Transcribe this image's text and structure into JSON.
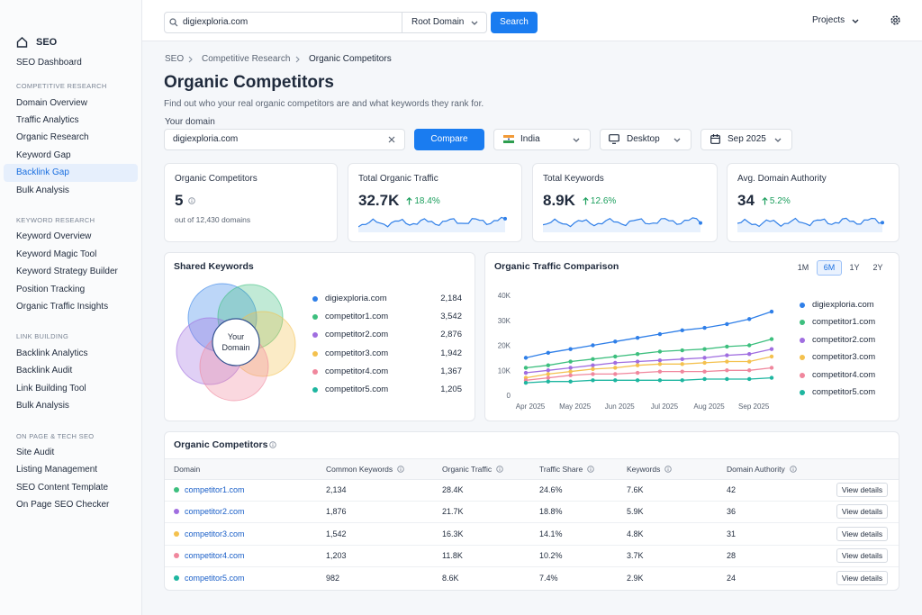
{
  "sidebar": {
    "title": "SEO",
    "dashboard": "SEO Dashboard",
    "active_section": 0,
    "active_item": 4,
    "sections": [
      {
        "heading": "COMPETITIVE RESEARCH",
        "items": [
          "Domain Overview",
          "Traffic Analytics",
          "Organic Research",
          "Keyword Gap",
          "Backlink Gap",
          "Bulk Analysis"
        ]
      },
      {
        "heading": "KEYWORD RESEARCH",
        "items": [
          "Keyword Overview",
          "Keyword Magic Tool",
          "Keyword Strategy Builder",
          "Position Tracking",
          "Organic Traffic Insights"
        ]
      },
      {
        "heading": "LINK BUILDING",
        "items": [
          "Backlink Analytics",
          "Backlink Audit",
          "Link Building Tool",
          "Bulk Analysis"
        ]
      },
      {
        "heading": "ON PAGE & TECH SEO",
        "items": [
          "Site Audit",
          "Listing Management",
          "SEO Content Template",
          "On Page SEO Checker"
        ]
      }
    ]
  },
  "topbar": {
    "search": "digiexploria.com",
    "scope": "Root Domain",
    "search_button": "Search",
    "projects": "Projects"
  },
  "breadcrumb": [
    "SEO",
    "Competitive Research",
    "Organic Competitors"
  ],
  "title": "Organic Competitors",
  "description": "Find out who your real organic competitors are and what keywords they rank for.",
  "form": {
    "label": "Your domain",
    "domain": "digiexploria.com",
    "compare": "Compare",
    "country": "India",
    "device": "Desktop",
    "date": "Sep 2025"
  },
  "kpis": [
    {
      "label": "Organic Competitors",
      "value": "5",
      "note": "out of 12,430 domains"
    },
    {
      "label": "Total Organic Traffic",
      "value": "32.7K",
      "change": "18.4%"
    },
    {
      "label": "Total Keywords",
      "value": "8.9K",
      "change": "12.6%"
    },
    {
      "label": "Avg. Domain Authority",
      "value": "34",
      "change": "5.2%"
    }
  ],
  "shared_keywords": {
    "title": "Shared Keywords",
    "center": "Your Domain",
    "items": [
      {
        "name": "digiexploria.com",
        "count": "2,184"
      },
      {
        "name": "competitor1.com",
        "count": "3,542"
      },
      {
        "name": "competitor2.com",
        "count": "2,876"
      },
      {
        "name": "competitor3.com",
        "count": "1,942"
      },
      {
        "name": "competitor4.com",
        "count": "1,367"
      },
      {
        "name": "competitor5.com",
        "count": "1,205"
      }
    ]
  },
  "chart_data": {
    "type": "line",
    "title": "Organic Traffic Comparison",
    "ranges": [
      "1M",
      "6M",
      "1Y",
      "2Y"
    ],
    "active_range": 1,
    "categories": [
      "Apr 2025",
      null,
      "May 2025",
      null,
      "Jun 2025",
      null,
      "Jul 2025",
      null,
      "Aug 2025",
      null,
      "Sep 2025",
      null
    ],
    "ylim": [
      0,
      40000
    ],
    "yticks": [
      0,
      {
        "value": 10000,
        "label": "10K"
      },
      {
        "value": 20000,
        "label": "20K"
      },
      {
        "value": 30000,
        "label": "30K"
      },
      {
        "value": 40000,
        "label": "40K"
      }
    ],
    "grid": false,
    "series": [
      {
        "name": "digiexploria.com",
        "color": "#2f7fe8",
        "values": [
          15000,
          17000,
          18500,
          20000,
          21500,
          23000,
          24500,
          26000,
          27000,
          28500,
          30500,
          33500
        ]
      },
      {
        "name": "competitor1.com",
        "color": "#3dbf7e",
        "values": [
          11000,
          12000,
          13500,
          14500,
          15500,
          16500,
          17500,
          18000,
          18500,
          19500,
          20000,
          22500
        ]
      },
      {
        "name": "competitor2.com",
        "color": "#a06ee0",
        "values": [
          9000,
          10000,
          11000,
          12000,
          13000,
          13500,
          14000,
          14500,
          15000,
          16000,
          16500,
          18500
        ]
      },
      {
        "name": "competitor3.com",
        "color": "#f4c14e",
        "values": [
          7000,
          8500,
          9500,
          10500,
          11000,
          12000,
          12500,
          12500,
          13000,
          13500,
          13500,
          15500
        ]
      },
      {
        "name": "competitor4.com",
        "color": "#f0879d",
        "values": [
          6000,
          7000,
          8000,
          8500,
          8500,
          9000,
          9500,
          9500,
          9500,
          10000,
          10000,
          11000
        ]
      },
      {
        "name": "competitor5.com",
        "color": "#1eb6a0",
        "values": [
          5000,
          5500,
          5500,
          6000,
          6000,
          6000,
          6000,
          6000,
          6500,
          6500,
          6500,
          7000
        ]
      }
    ]
  },
  "table": {
    "title": "Organic Competitors",
    "columns": [
      "Domain",
      "Common Keywords",
      "Organic Traffic",
      "Traffic Share",
      "Keywords",
      "Domain Authority"
    ],
    "rows": [
      [
        "competitor1.com",
        "2,134",
        "28.4K",
        "24.6%",
        "7.6K",
        "42"
      ],
      [
        "competitor2.com",
        "1,876",
        "21.7K",
        "18.8%",
        "5.9K",
        "36"
      ],
      [
        "competitor3.com",
        "1,542",
        "16.3K",
        "14.1%",
        "4.8K",
        "31"
      ],
      [
        "competitor4.com",
        "1,203",
        "11.8K",
        "10.2%",
        "3.7K",
        "28"
      ],
      [
        "competitor5.com",
        "982",
        "8.6K",
        "7.4%",
        "2.9K",
        "24"
      ]
    ],
    "action": "View details"
  }
}
